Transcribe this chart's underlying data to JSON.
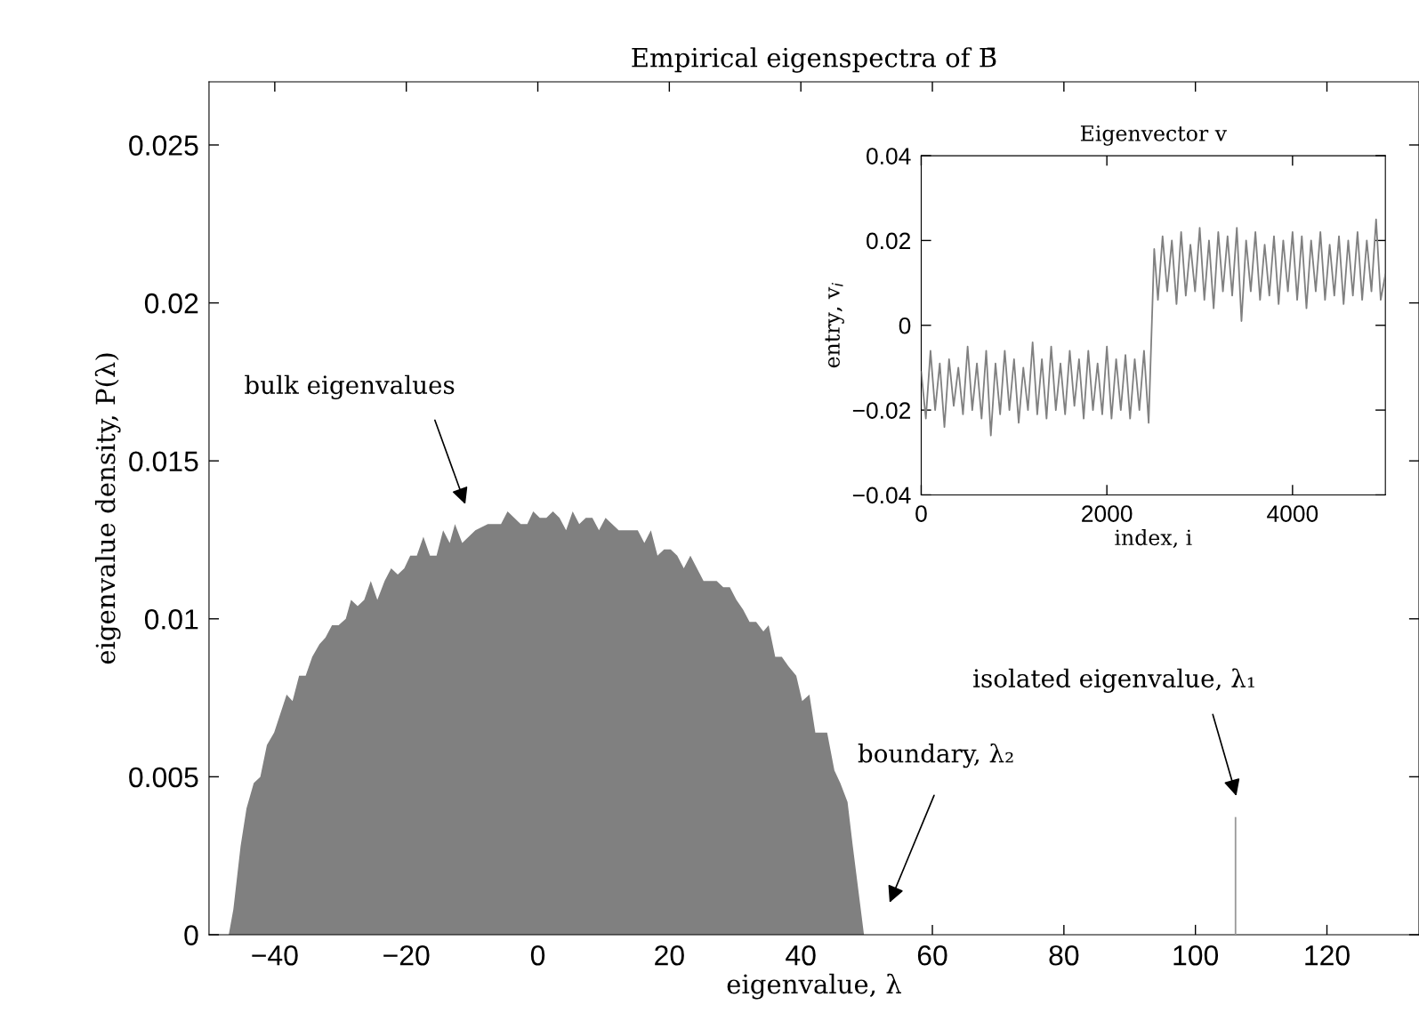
{
  "chart_data": [
    {
      "type": "area",
      "title": "Empirical eigenspectra of B̄",
      "xlabel": "eigenvalue, λ",
      "ylabel": "eigenvalue density, P(λ)",
      "series": [
        {
          "color": "#808080",
          "x": [
            -47.0,
            -46.3,
            -45.2,
            -44.3,
            -43.2,
            -42.2,
            -41.2,
            -40.1,
            -38.2,
            -37.3,
            -36.3,
            -35.3,
            -34.3,
            -33.2,
            -32.3,
            -31.3,
            -30.3,
            -29.2,
            -28.4,
            -27.4,
            -26.4,
            -25.4,
            -24.4,
            -23.3,
            -22.3,
            -21.3,
            -20.3,
            -19.4,
            -18.4,
            -17.4,
            -16.4,
            -15.4,
            -14.4,
            -13.4,
            -12.6,
            -11.5,
            -9.5,
            -7.6,
            -5.6,
            -4.6,
            -2.6,
            -1.6,
            -0.7,
            0.3,
            1.3,
            2.3,
            3.3,
            4.3,
            5.3,
            6.3,
            7.3,
            8.3,
            9.3,
            10.3,
            12.3,
            15.2,
            16.2,
            17.2,
            18.2,
            19.2,
            20.2,
            21.2,
            22.2,
            23.2,
            25.2,
            27.2,
            28.2,
            29.2,
            30.2,
            31.2,
            32.2,
            33.2,
            34.3,
            35.1,
            36.1,
            37.1,
            38.1,
            39.3,
            40.2,
            41.3,
            42.2,
            44.0,
            45.1,
            46.0,
            47.1,
            47.9,
            49.6
          ],
          "values": [
            0,
            0.0008,
            0.0028,
            0.004,
            0.0048,
            0.005,
            0.006,
            0.0064,
            0.0076,
            0.0074,
            0.0082,
            0.0082,
            0.0088,
            0.0092,
            0.0094,
            0.0098,
            0.0098,
            0.01,
            0.0106,
            0.0104,
            0.0106,
            0.0112,
            0.0106,
            0.0112,
            0.0116,
            0.0114,
            0.0116,
            0.012,
            0.012,
            0.0126,
            0.012,
            0.012,
            0.0128,
            0.0124,
            0.013,
            0.0124,
            0.0128,
            0.013,
            0.013,
            0.0134,
            0.013,
            0.013,
            0.0134,
            0.0132,
            0.0132,
            0.0134,
            0.0132,
            0.0128,
            0.0134,
            0.013,
            0.0132,
            0.0132,
            0.0128,
            0.0132,
            0.0128,
            0.0128,
            0.0124,
            0.0128,
            0.012,
            0.0122,
            0.0122,
            0.012,
            0.0116,
            0.012,
            0.0112,
            0.0112,
            0.011,
            0.011,
            0.0106,
            0.0103,
            0.0099,
            0.0099,
            0.0096,
            0.0098,
            0.0088,
            0.0088,
            0.0085,
            0.0082,
            0.0074,
            0.0076,
            0.0064,
            0.0064,
            0.0052,
            0.0048,
            0.0042,
            0.0028,
            0
          ]
        },
        {
          "type": "line",
          "color": "#999999",
          "x": [
            106.1,
            106.1
          ],
          "values": [
            0,
            0.0037
          ]
        }
      ],
      "xlim": [
        -50,
        134
      ],
      "ylim": [
        0,
        0.027
      ],
      "xticks": [
        {
          "value": -40,
          "label": "−40"
        },
        {
          "value": -20,
          "label": "−20"
        },
        0,
        20,
        40,
        60,
        80,
        100,
        120
      ],
      "yticks": [
        0,
        0.005,
        0.01,
        0.015,
        0.02,
        0.025
      ],
      "annotations": [
        "bulk eigenvalues",
        "boundary, λ₂",
        "isolated eigenvalue, λ₁"
      ],
      "grid": false,
      "legend": false
    },
    {
      "type": "line",
      "title": "Eigenvector v",
      "xlabel": "index, i",
      "ylabel": "entry, v$_{i}$",
      "series": [
        {
          "color": "#808080",
          "x": [
            0,
            50,
            100,
            150,
            200,
            250,
            300,
            350,
            400,
            450,
            500,
            550,
            600,
            650,
            700,
            750,
            800,
            850,
            900,
            950,
            1000,
            1050,
            1100,
            1150,
            1200,
            1250,
            1300,
            1350,
            1400,
            1450,
            1500,
            1550,
            1600,
            1650,
            1700,
            1750,
            1800,
            1850,
            1900,
            1950,
            2000,
            2050,
            2100,
            2150,
            2200,
            2250,
            2300,
            2350,
            2400,
            2450,
            2510,
            2550,
            2600,
            2650,
            2700,
            2750,
            2800,
            2850,
            2900,
            2950,
            3000,
            3050,
            3100,
            3150,
            3200,
            3250,
            3300,
            3350,
            3400,
            3450,
            3500,
            3550,
            3600,
            3650,
            3700,
            3750,
            3800,
            3850,
            3900,
            3950,
            4000,
            4050,
            4100,
            4150,
            4200,
            4250,
            4300,
            4350,
            4400,
            4450,
            4500,
            4550,
            4600,
            4650,
            4700,
            4750,
            4800,
            4850,
            4900,
            4950,
            5000
          ],
          "values": [
            -0.011,
            -0.022,
            -0.006,
            -0.02,
            -0.009,
            -0.024,
            -0.008,
            -0.019,
            -0.01,
            -0.021,
            -0.005,
            -0.02,
            -0.009,
            -0.022,
            -0.006,
            -0.026,
            -0.009,
            -0.021,
            -0.006,
            -0.02,
            -0.008,
            -0.023,
            -0.01,
            -0.02,
            -0.004,
            -0.021,
            -0.008,
            -0.022,
            -0.005,
            -0.02,
            -0.009,
            -0.021,
            -0.006,
            -0.019,
            -0.008,
            -0.022,
            -0.006,
            -0.02,
            -0.009,
            -0.021,
            -0.005,
            -0.022,
            -0.008,
            -0.02,
            -0.007,
            -0.022,
            -0.008,
            -0.02,
            -0.006,
            -0.023,
            0.018,
            0.006,
            0.021,
            0.008,
            0.02,
            0.005,
            0.022,
            0.007,
            0.019,
            0.008,
            0.023,
            0.006,
            0.02,
            0.004,
            0.022,
            0.008,
            0.021,
            0.007,
            0.023,
            0.001,
            0.02,
            0.008,
            0.022,
            0.006,
            0.019,
            0.007,
            0.021,
            0.005,
            0.02,
            0.008,
            0.022,
            0.006,
            0.021,
            0.004,
            0.02,
            0.008,
            0.022,
            0.006,
            0.019,
            0.007,
            0.021,
            0.005,
            0.02,
            0.007,
            0.022,
            0.006,
            0.02,
            0.008,
            0.025,
            0.006,
            0.012
          ]
        }
      ],
      "xlim": [
        0,
        5000
      ],
      "ylim": [
        -0.04,
        0.04
      ],
      "xticks": [
        0,
        2000,
        4000
      ],
      "yticks": [
        {
          "value": -0.04,
          "label": "−0.04"
        },
        {
          "value": -0.02,
          "label": "−0.02"
        },
        0,
        0.02,
        0.04
      ],
      "grid": false,
      "legend": false
    }
  ]
}
